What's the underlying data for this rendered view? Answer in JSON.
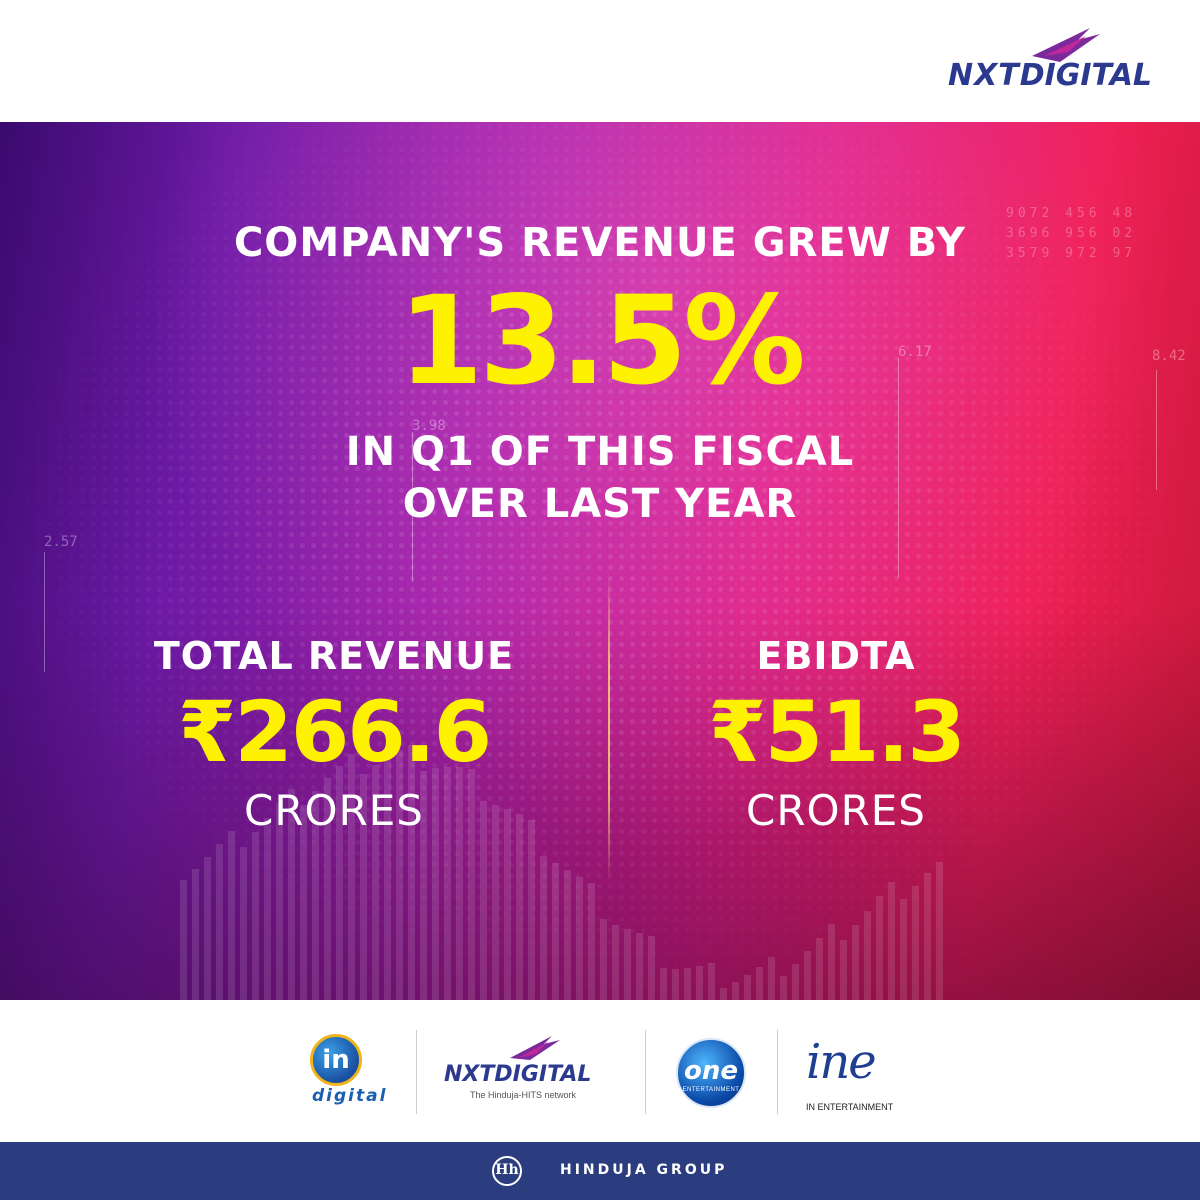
{
  "header": {
    "logo_text_a": "NXT",
    "logo_text_b": "DIGITAL"
  },
  "hero": {
    "headline_top": "COMPANY'S REVENUE GREW BY",
    "growth_value": "13.5%",
    "headline_bottom_line1": "IN Q1 OF THIS FISCAL",
    "headline_bottom_line2": "OVER LAST YEAR",
    "background_numbers": [
      "2.57",
      "3.98",
      "6.17",
      "8.42"
    ],
    "background_grid": [
      "9072 456 48",
      "3696 956 02",
      "3579 972 97"
    ],
    "stats": [
      {
        "label": "TOTAL REVENUE",
        "value": "₹266.6",
        "unit": "CRORES"
      },
      {
        "label": "EBIDTA",
        "value": "₹51.3",
        "unit": "CRORES"
      }
    ],
    "colors": {
      "highlight": "#fff200",
      "text": "#ffffff"
    }
  },
  "partners": {
    "indigital": {
      "badge": "in",
      "sub": "digital"
    },
    "nxtdigital": {
      "wordmark": "NXTDIGITAL",
      "tagline": "The Hinduja-HITS network"
    },
    "one": {
      "badge": "one",
      "sub": "ENTERTAINMENT"
    },
    "ine": {
      "script": "ine",
      "caption": "IN ENTERTAINMENT"
    }
  },
  "footer": {
    "mark": "Hh",
    "group_name": "HINDUJA GROUP",
    "color": "#2b3d7e"
  }
}
